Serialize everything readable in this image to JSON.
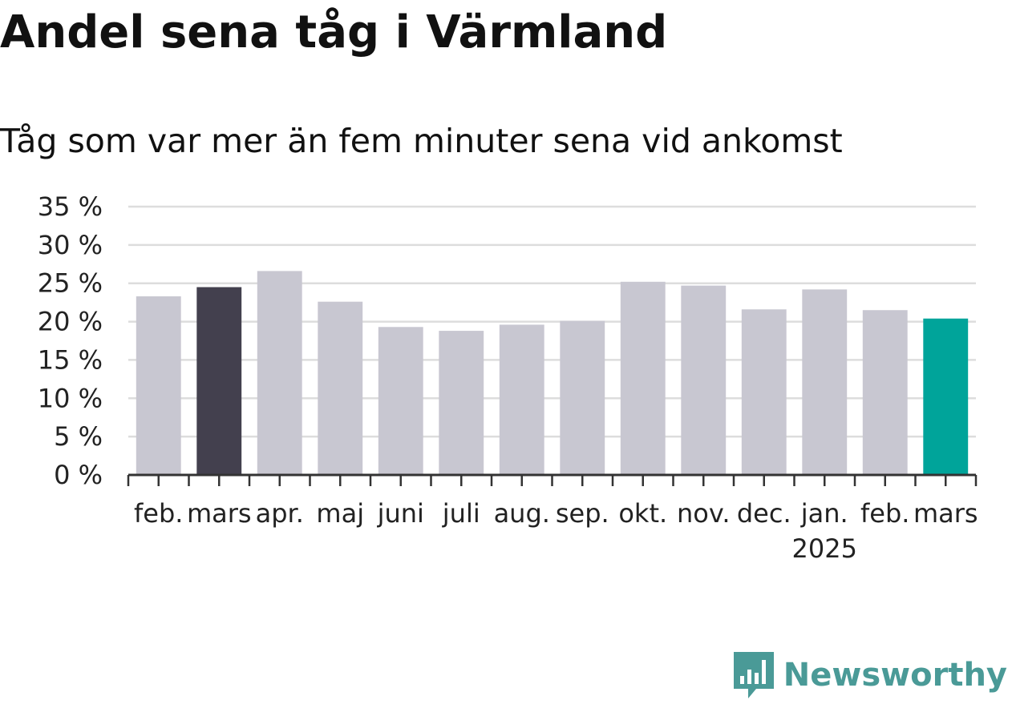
{
  "title": "Andel sena tåg i Värmland",
  "subtitle": "Tåg som var mer än fem minuter sena vid ankomst",
  "logo": {
    "text": "Newsworthy"
  },
  "colors": {
    "default_bar": "#c8c7d1",
    "first_highlight_bar": "#43404e",
    "latest_bar": "#00a49a",
    "grid": "#dddddd",
    "axis": "#333333"
  },
  "chart_data": {
    "type": "bar",
    "title": "Andel sena tåg i Värmland",
    "subtitle": "Tåg som var mer än fem minuter sena vid ankomst",
    "categories": [
      "feb.",
      "mars",
      "apr.",
      "maj",
      "juni",
      "juli",
      "aug.",
      "sep.",
      "okt.",
      "nov.",
      "dec.",
      "jan.",
      "feb.",
      "mars"
    ],
    "year_labels": [
      "",
      "",
      "",
      "",
      "",
      "",
      "",
      "",
      "",
      "",
      "",
      "2025",
      "",
      ""
    ],
    "values": [
      23.3,
      24.5,
      26.6,
      22.6,
      19.3,
      18.8,
      19.6,
      20.1,
      25.2,
      24.7,
      21.6,
      24.2,
      21.5,
      20.4
    ],
    "highlight": [
      "default",
      "first",
      "default",
      "default",
      "default",
      "default",
      "default",
      "default",
      "default",
      "default",
      "default",
      "default",
      "default",
      "latest"
    ],
    "ylim": [
      0,
      35
    ],
    "yticks": [
      0,
      5,
      10,
      15,
      20,
      25,
      30,
      35
    ],
    "ytick_labels": [
      "0 %",
      "5 %",
      "10 %",
      "15 %",
      "20 %",
      "25 %",
      "30 %",
      "35 %"
    ],
    "grid": true,
    "xlabel": "",
    "ylabel": ""
  }
}
